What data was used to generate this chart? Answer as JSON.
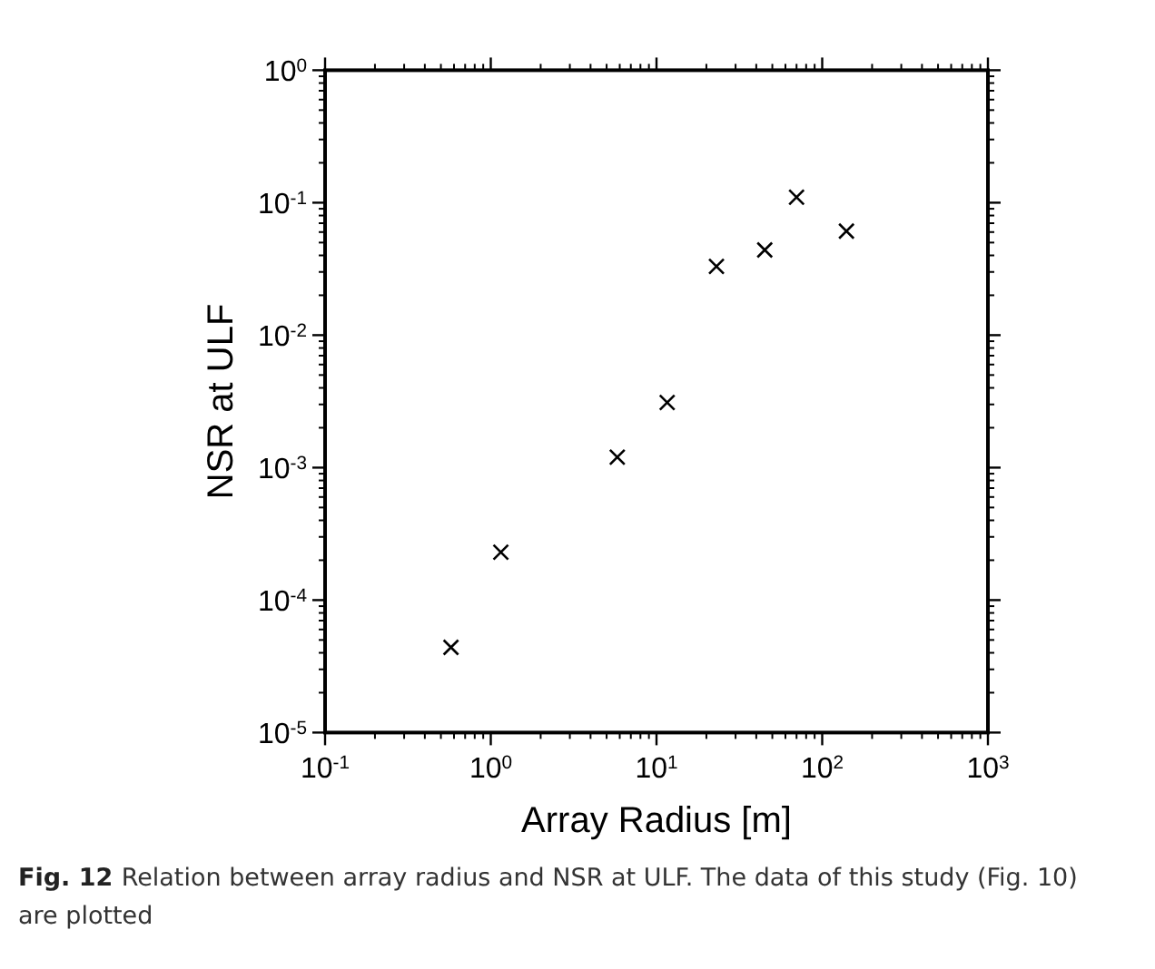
{
  "chart_data": {
    "type": "scatter",
    "xlabel": "Array Radius [m]",
    "ylabel": "NSR at ULF",
    "log": "xy",
    "marker": "cross",
    "grid": false,
    "x": [
      0.575,
      1.15,
      5.8,
      11.6,
      23,
      45,
      70,
      140
    ],
    "series": [
      {
        "color": "#000000",
        "values": [
          4.4e-05,
          0.00023,
          0.0012,
          0.0031,
          0.033,
          0.044,
          0.11,
          0.061
        ]
      }
    ],
    "xlim": [
      0.1,
      1000
    ],
    "ylim": [
      1e-05,
      1
    ],
    "xticks": [
      {
        "value": 0.1,
        "label": "10$^{-1}$"
      },
      {
        "value": 1,
        "label": "10$^{0}$"
      },
      {
        "value": 10,
        "label": "10$^{1}$"
      },
      {
        "value": 100,
        "label": "10$^{2}$"
      },
      {
        "value": 1000,
        "label": "10$^{3}$"
      }
    ],
    "yticks": [
      {
        "value": 1e-05,
        "label": "10$^{-5}$"
      },
      {
        "value": 0.0001,
        "label": "10$^{-4}$"
      },
      {
        "value": 0.001,
        "label": "10$^{-3}$"
      },
      {
        "value": 0.01,
        "label": "10$^{-2}$"
      },
      {
        "value": 0.1,
        "label": "10$^{-1}$"
      },
      {
        "value": 1,
        "label": "10$^{0}$"
      }
    ],
    "annotations": [
      "Fig. 12 Relation between array radius and NSR at ULF. The data of this study (Fig. 10) are plotted"
    ]
  }
}
